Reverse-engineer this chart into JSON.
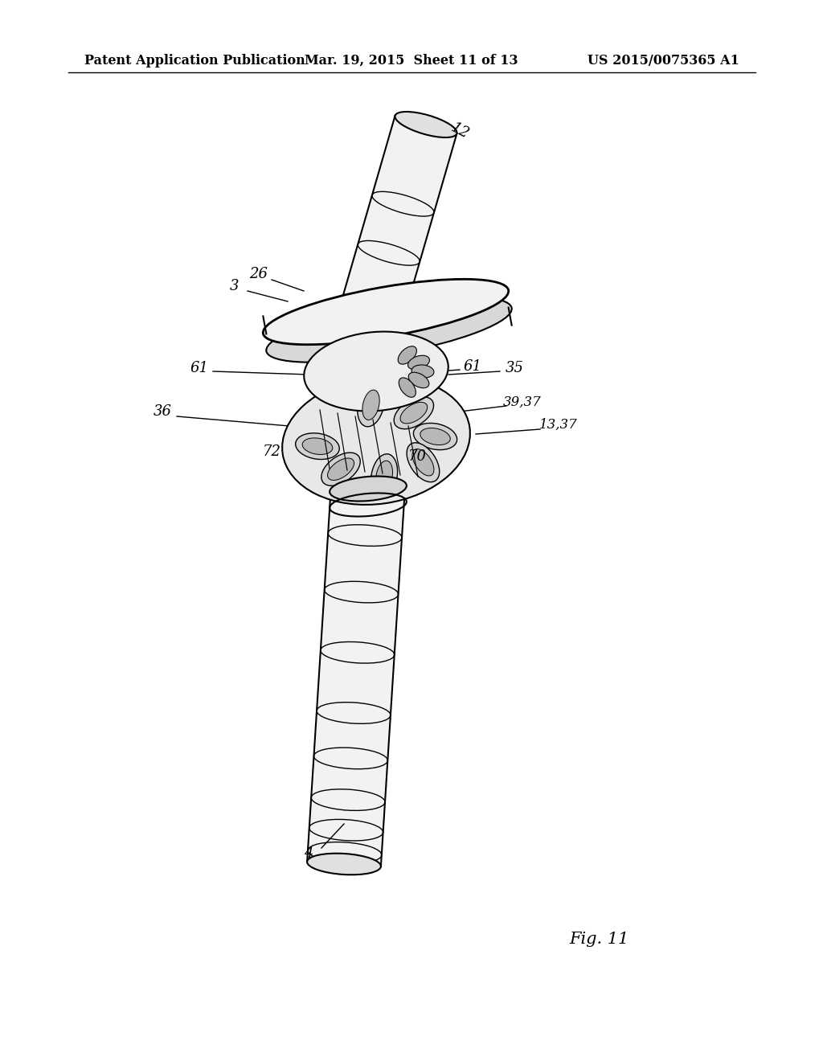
{
  "background_color": "#ffffff",
  "header_left": "Patent Application Publication",
  "header_center": "Mar. 19, 2015  Sheet 11 of 13",
  "header_right": "US 2015/0075365 A1",
  "header_fontsize": 11.5,
  "fig_label": "Fig. 11",
  "fig_label_fontsize": 15,
  "line_color": "#000000",
  "fill_light": "#f2f2f2",
  "fill_mid": "#e0e0e0",
  "fill_dark": "#c8c8c8",
  "lw_main": 1.5,
  "lw_detail": 1.0,
  "annotation_fontsize": 13
}
